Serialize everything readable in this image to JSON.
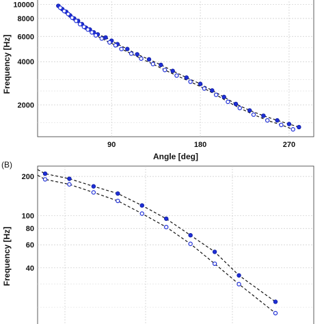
{
  "chart_data": [
    {
      "type": "scatter",
      "xlabel": "Angle [deg]",
      "ylabel": "Frequency [Hz]",
      "xticks": [
        "90",
        "180",
        "270"
      ],
      "yticks": [
        "2000",
        "4000",
        "6000",
        "8000",
        "10000"
      ],
      "yscale": "log",
      "xlim": [
        15,
        295
      ],
      "ylim": [
        1200,
        11000
      ],
      "grid": true,
      "series": [
        {
          "marker": "filled-circle",
          "x": [
            36,
            40,
            44,
            48,
            52,
            56,
            60,
            64,
            68,
            72,
            76,
            84,
            90,
            96,
            106,
            116,
            128,
            140,
            152,
            166,
            180,
            192,
            204,
            216,
            230,
            244,
            258,
            270,
            280
          ],
          "y": [
            9800,
            9300,
            8900,
            8400,
            8000,
            7700,
            7300,
            6900,
            6700,
            6400,
            6200,
            5900,
            5600,
            5300,
            4900,
            4500,
            4150,
            3800,
            3450,
            3100,
            2800,
            2520,
            2270,
            2030,
            1830,
            1680,
            1560,
            1470,
            1400
          ]
        },
        {
          "marker": "open-circle",
          "x": [
            38,
            42,
            46,
            50,
            54,
            58,
            62,
            66,
            70,
            74,
            80,
            88,
            94,
            100,
            110,
            120,
            132,
            144,
            156,
            170,
            184,
            196,
            208,
            220,
            234,
            248,
            262,
            274
          ],
          "y": [
            9500,
            9000,
            8600,
            8100,
            7700,
            7300,
            7000,
            6700,
            6400,
            6100,
            5800,
            5450,
            5200,
            4900,
            4550,
            4200,
            3850,
            3500,
            3200,
            2900,
            2600,
            2350,
            2100,
            1900,
            1710,
            1560,
            1450,
            1350
          ]
        }
      ],
      "fit_lines": "dashed"
    },
    {
      "panel_label": "(B)",
      "type": "scatter",
      "xlabel": "",
      "ylabel": "Frequency [Hz]",
      "yticks": [
        "40",
        "60",
        "80",
        "100",
        "200"
      ],
      "yscale": "log",
      "ylim": [
        14,
        240
      ],
      "grid": true,
      "series": [
        {
          "marker": "filled-circle",
          "x": [
            1,
            2,
            3,
            4,
            5,
            6,
            7,
            8,
            9,
            10
          ],
          "y": [
            210,
            192,
            168,
            148,
            120,
            95,
            71,
            53,
            35,
            22
          ]
        },
        {
          "marker": "open-circle",
          "x": [
            1,
            2,
            3,
            4,
            5,
            6,
            7,
            8,
            9,
            10
          ],
          "y": [
            190,
            174,
            151,
            130,
            104,
            82,
            61,
            43,
            30,
            18
          ]
        }
      ],
      "fit_lines": "dashed"
    }
  ]
}
